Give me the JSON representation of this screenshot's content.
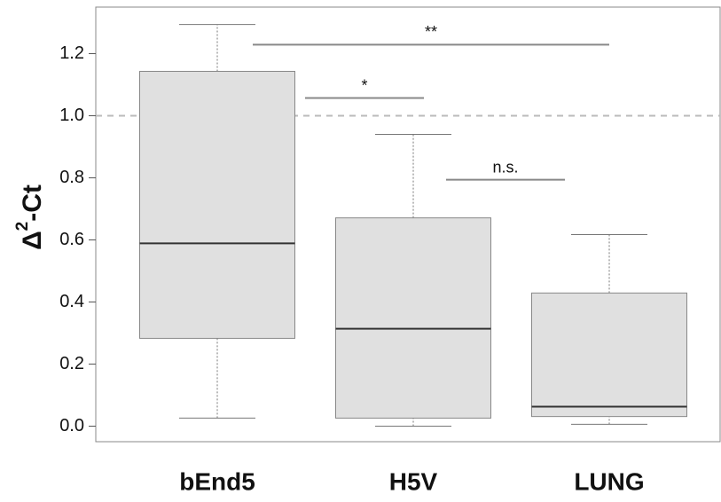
{
  "chart_data": {
    "type": "box",
    "categories": [
      "bEnd5",
      "H5V",
      "LUNG"
    ],
    "boxes": [
      {
        "low": 0.026,
        "q1": 0.283,
        "median": 0.589,
        "q3": 1.143,
        "high": 1.294
      },
      {
        "low": 0.0,
        "q1": 0.026,
        "median": 0.314,
        "q3": 0.671,
        "high": 0.94
      },
      {
        "low": 0.006,
        "q1": 0.031,
        "median": 0.063,
        "q3": 0.429,
        "high": 0.617
      }
    ],
    "color": "#e0e0e0",
    "ylabel": [
      "Δ",
      "2",
      "-Ct"
    ],
    "ylim": [
      -0.05,
      1.35
    ],
    "yticks": [
      {
        "value": 0,
        "label": "0.0"
      },
      {
        "value": 0.2,
        "label": "0.2"
      },
      {
        "value": 0.4,
        "label": "0.4"
      },
      {
        "value": 0.6,
        "label": "0.6"
      },
      {
        "value": 0.8,
        "label": "0.8"
      },
      {
        "value": 1.0,
        "label": "1.0"
      },
      {
        "value": 1.2,
        "label": "1.2"
      }
    ],
    "reference_line": 1.0,
    "annotations": [
      {
        "text": "**",
        "y": 1.229
      },
      {
        "text": "*",
        "y": 1.057
      },
      {
        "text": "n.s.",
        "y": 0.794
      }
    ]
  }
}
